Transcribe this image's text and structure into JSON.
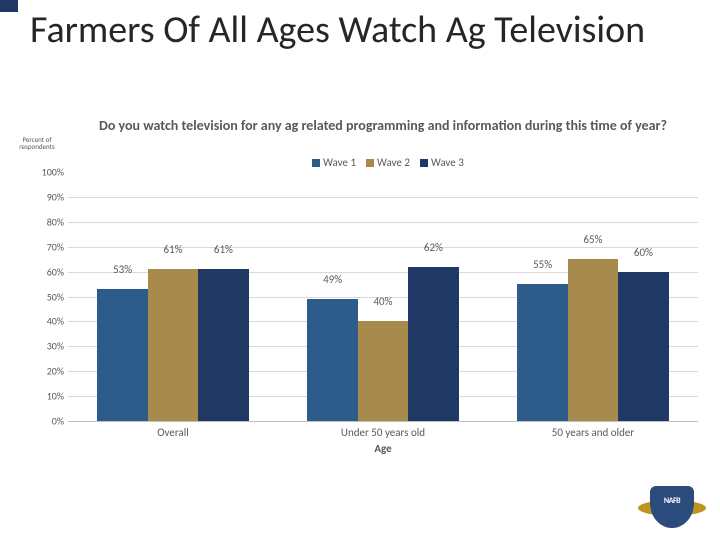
{
  "slide": {
    "title": "Farmers Of All Ages Watch Ag Television",
    "accent_color": "#203864"
  },
  "chart": {
    "type": "bar",
    "y_axis_caption_line1": "Percent of",
    "y_axis_caption_line2": "respondents",
    "subtitle": "Do you watch television for any ag related programming and information during this time of year?",
    "axis_title": "Age",
    "ylim": [
      0,
      100
    ],
    "ytick_step": 10,
    "grid_color": "#d9d9d9",
    "background": "#ffffff",
    "label_fontsize": 11,
    "subtitle_fontsize": 14,
    "bar_width_pct": 8,
    "series": [
      {
        "name": "Wave 1",
        "color": "#2e5c8a"
      },
      {
        "name": "Wave 2",
        "color": "#a88b4c"
      },
      {
        "name": "Wave 3",
        "color": "#203864"
      }
    ],
    "categories": [
      {
        "label": "Overall",
        "values": [
          53,
          61,
          61
        ]
      },
      {
        "label": "Under 50 years old",
        "values": [
          49,
          40,
          62
        ]
      },
      {
        "label": "50 years and older",
        "values": [
          55,
          65,
          60
        ]
      }
    ]
  },
  "logo": {
    "name": "NAFB",
    "shield_color": "#2a4b7c",
    "wing_color": "#b8860b"
  }
}
